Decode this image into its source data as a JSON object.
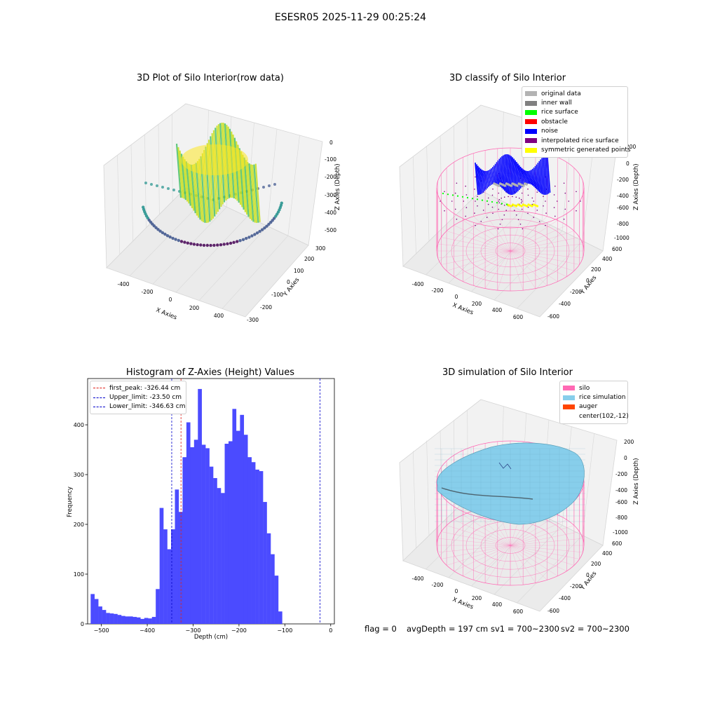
{
  "figure": {
    "suptitle": "ESESR05 2025-11-29 00:25:24",
    "status": {
      "flag": "flag = 0",
      "avg_depth": "avgDepth = 197 cm",
      "sv1": "sv1 = 700~2300",
      "sv2": "sv2 = 700~2300"
    }
  },
  "chart_data": [
    {
      "type": "scatter",
      "title": "3D Plot of Silo Interior(row data)",
      "xlabel": "X Axies",
      "ylabel": "Y Axies",
      "zlabel": "Z Axies (Depth)",
      "x_ticks": [
        "-400",
        "-200",
        "0",
        "200",
        "400"
      ],
      "y_ticks": [
        "-300",
        "-200",
        "-100",
        "0",
        "100",
        "200",
        "300"
      ],
      "z_ticks": [
        "0",
        "-100",
        "-200",
        "-300",
        "-400",
        "-500"
      ],
      "colormap": [
        "#440154",
        "#3b528b",
        "#21918c",
        "#5ec962",
        "#fde725"
      ]
    },
    {
      "type": "scatter",
      "title": "3D classify of Silo Interior",
      "xlabel": "X Axies",
      "ylabel": "Y Axies",
      "zlabel": "Z Axies (Depth)",
      "x_ticks": [
        "-400",
        "-200",
        "0",
        "200",
        "400",
        "600"
      ],
      "y_ticks": [
        "-600",
        "-400",
        "-200",
        "0",
        "200",
        "400",
        "600"
      ],
      "z_ticks": [
        "200",
        "0",
        "-200",
        "-400",
        "-600",
        "-800",
        "-1000"
      ],
      "legend": [
        {
          "label": "original data",
          "color": "#b3b3b3"
        },
        {
          "label": "inner wall",
          "color": "#808080"
        },
        {
          "label": "rice surface",
          "color": "#00ff00"
        },
        {
          "label": "obstacle",
          "color": "#ff0000"
        },
        {
          "label": "noise",
          "color": "#0000ff"
        },
        {
          "label": "interpolated rice surface",
          "color": "#800080"
        },
        {
          "label": "symmetric generated points",
          "color": "#ffff00"
        }
      ],
      "silo_color": "#ff69b4"
    },
    {
      "type": "bar",
      "title": "Histogram of Z-Axies (Height) Values",
      "xlabel": "Depth (cm)",
      "ylabel": "Frequency",
      "xlim": [
        -530,
        8
      ],
      "ylim": [
        0,
        493
      ],
      "x_ticks": [
        -500,
        -400,
        -300,
        -200,
        -100,
        0
      ],
      "y_ticks": [
        0,
        100,
        200,
        300,
        400
      ],
      "bar_color": "#4b4bff",
      "bin_start": -523.4,
      "bin_width": 8.35,
      "values": [
        60,
        50,
        35,
        28,
        22,
        21,
        20,
        18,
        16,
        15,
        15,
        14,
        13,
        10,
        12,
        11,
        14,
        70,
        233,
        190,
        150,
        190,
        270,
        225,
        335,
        405,
        355,
        370,
        472,
        360,
        353,
        316,
        293,
        273,
        263,
        362,
        367,
        432,
        388,
        420,
        380,
        335,
        325,
        310,
        307,
        245,
        182,
        140,
        97,
        25
      ],
      "vlines": [
        {
          "label": "first_peak: -326.44 cm",
          "value": -326.44,
          "color": "#e0201a"
        },
        {
          "label": "Upper_limit: -23.50 cm",
          "value": -23.5,
          "color": "#0000cc"
        },
        {
          "label": "Lower_limit: -346.63 cm",
          "value": -346.63,
          "color": "#0000cc"
        }
      ]
    },
    {
      "type": "scatter",
      "title": "3D simulation of Silo Interior",
      "xlabel": "X Axies",
      "ylabel": "Y Axies",
      "zlabel": "Z Axies (Depth)",
      "x_ticks": [
        "-400",
        "-200",
        "0",
        "200",
        "400",
        "600"
      ],
      "y_ticks": [
        "-600",
        "-400",
        "-200",
        "0",
        "200",
        "400",
        "600"
      ],
      "z_ticks": [
        "200",
        "0",
        "-200",
        "-400",
        "-600",
        "-800",
        "-1000"
      ],
      "legend": [
        {
          "label": "silo",
          "color": "#ff69b4"
        },
        {
          "label": "rice simulation",
          "color": "#87ceeb"
        },
        {
          "label": "auger",
          "color": "#ff4500"
        },
        {
          "label": "center(102,-12)",
          "color": ""
        }
      ],
      "avg_depth_cm": 197
    }
  ]
}
